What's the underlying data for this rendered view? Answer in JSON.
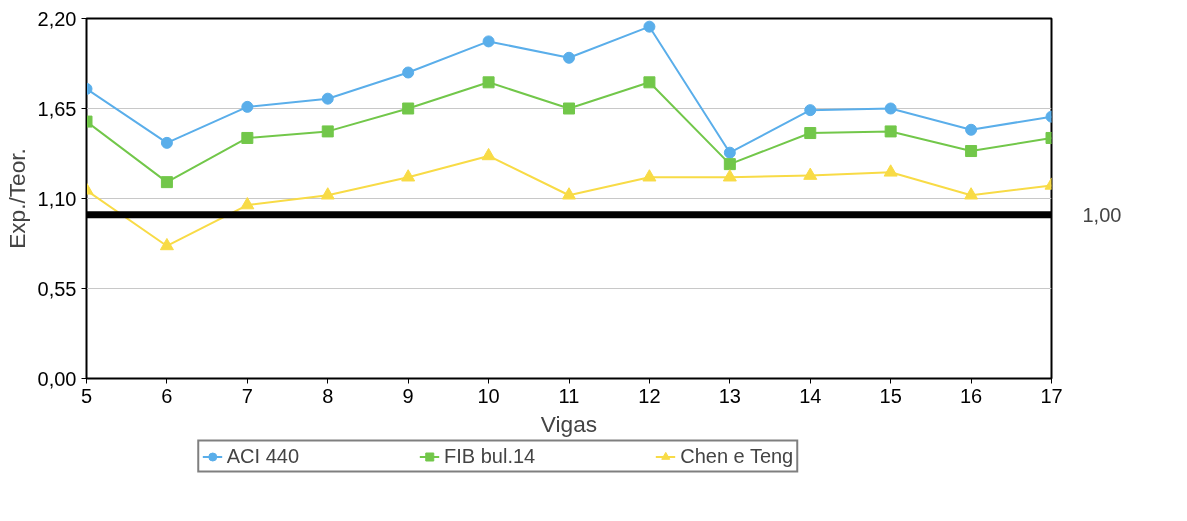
{
  "chart_data": {
    "type": "line",
    "xlabel": "Vigas",
    "ylabel": "Exp./Teor.",
    "x": [
      5,
      6,
      7,
      8,
      9,
      10,
      11,
      12,
      13,
      14,
      15,
      16,
      17
    ],
    "xlim": [
      5,
      17
    ],
    "xticks": [
      5,
      6,
      7,
      8,
      9,
      10,
      11,
      12,
      13,
      14,
      15,
      16,
      17
    ],
    "ylim": [
      0,
      2.2
    ],
    "yticks": [
      {
        "value": 0,
        "label": "0,00"
      },
      {
        "value": 0.55,
        "label": "0,55"
      },
      {
        "value": 1.1,
        "label": "1,10"
      },
      {
        "value": 1.65,
        "label": "1,65"
      },
      {
        "value": 2.2,
        "label": "2,20"
      }
    ],
    "grid": "y",
    "legend": "bottom",
    "ref_lines": [
      {
        "axis": "y",
        "value": 1.0,
        "label": "1,00",
        "color": "#000000"
      }
    ],
    "series": [
      {
        "name": "ACI 440",
        "color": "#5aaeea",
        "marker": "circle",
        "values": [
          1.77,
          1.44,
          1.66,
          1.71,
          1.87,
          2.06,
          1.96,
          2.15,
          1.38,
          1.64,
          1.65,
          1.52,
          1.6
        ]
      },
      {
        "name": "FIB bul.14",
        "color": "#72c74a",
        "marker": "square",
        "values": [
          1.57,
          1.2,
          1.47,
          1.51,
          1.65,
          1.81,
          1.65,
          1.81,
          1.31,
          1.5,
          1.51,
          1.39,
          1.47
        ]
      },
      {
        "name": "Chen e Teng",
        "color": "#f8db46",
        "marker": "triangle",
        "values": [
          1.15,
          0.81,
          1.06,
          1.12,
          1.23,
          1.36,
          1.12,
          1.23,
          1.23,
          1.24,
          1.26,
          1.12,
          1.18
        ]
      }
    ]
  }
}
